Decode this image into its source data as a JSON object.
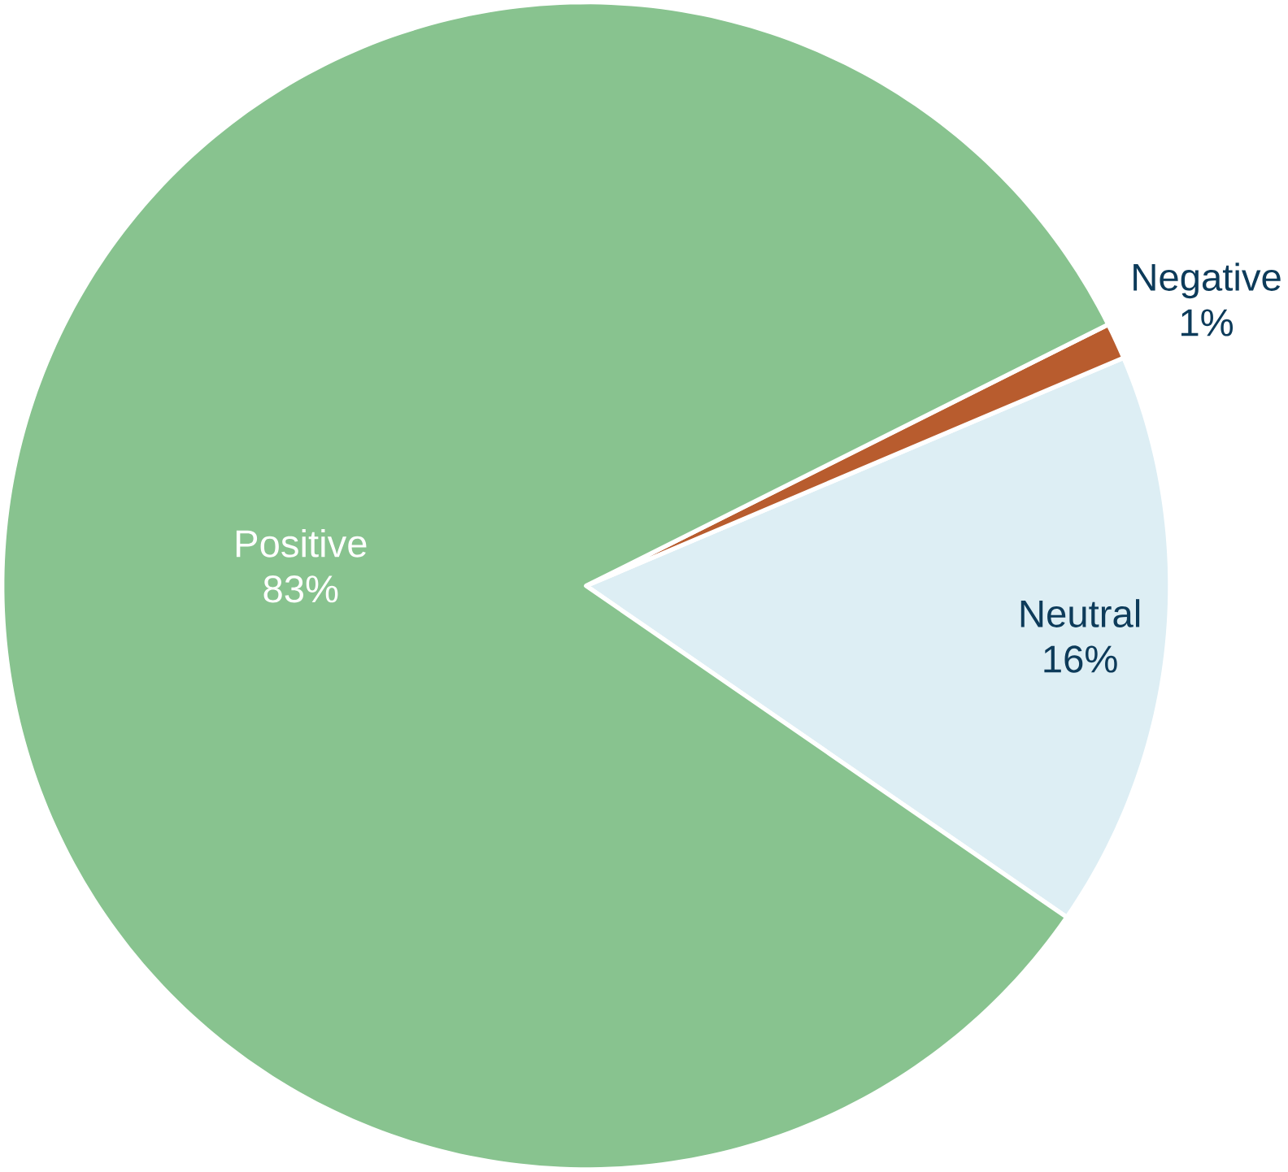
{
  "chart_data": {
    "type": "pie",
    "categories": [
      "Neutral",
      "Negative",
      "Positive"
    ],
    "values": [
      16,
      1,
      83
    ],
    "value_labels": [
      "16%",
      "1%",
      "83%"
    ],
    "colors": [
      "#ddeef4",
      "#b85c2e",
      "#88c38f"
    ]
  }
}
